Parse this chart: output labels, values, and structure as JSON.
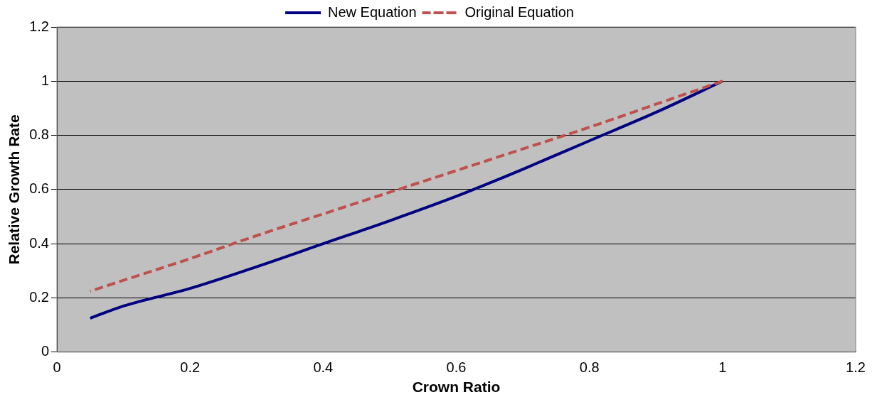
{
  "chart_data": {
    "type": "line",
    "xlabel": "Crown Ratio",
    "ylabel": "Relative Growth Rate",
    "x": [
      0.05,
      0.1,
      0.2,
      0.3,
      0.4,
      0.5,
      0.6,
      0.7,
      0.8,
      0.9,
      1
    ],
    "series": [
      {
        "name": "New Equation",
        "color": "#000080",
        "line_style": "solid",
        "values": [
          0.125,
          0.17,
          0.235,
          0.315,
          0.4,
          0.485,
          0.575,
          0.675,
          0.78,
          0.885,
          1
        ]
      },
      {
        "name": "Original Equation",
        "color": "#c0504d",
        "line_style": "dashed",
        "values": [
          0.225,
          0.265,
          0.345,
          0.43,
          0.51,
          0.59,
          0.67,
          0.75,
          0.83,
          0.915,
          1
        ]
      }
    ],
    "xlim": [
      0,
      1.2
    ],
    "xticks": [
      0,
      0.2,
      0.4,
      0.6,
      0.8,
      1,
      1.2
    ],
    "ylim": [
      0,
      1.2
    ],
    "yticks": [
      0,
      0.2,
      0.4,
      0.6,
      0.8,
      1,
      1.2
    ],
    "grid": "y",
    "legend": "top",
    "marker": "none"
  }
}
